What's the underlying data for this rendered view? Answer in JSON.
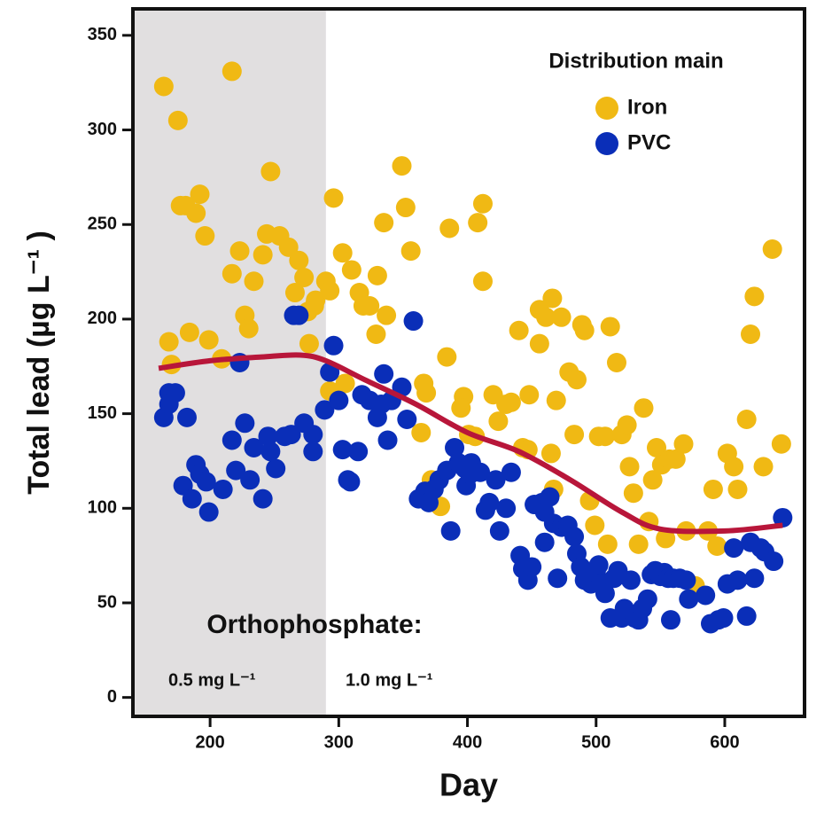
{
  "chart_data": {
    "type": "scatter",
    "x_label": "Day",
    "y_label": "Total lead (µg L⁻¹ )",
    "xlim": [
      140,
      662
    ],
    "ylim": [
      -10,
      364
    ],
    "xticks": [
      200,
      300,
      400,
      500,
      600
    ],
    "yticks": [
      0,
      50,
      100,
      150,
      200,
      250,
      300,
      350
    ],
    "shaded_region": [
      140,
      290
    ],
    "shade_color": "#e1dfe0",
    "legend_title": "Distribution main",
    "legend": "upper right",
    "annotations": [
      "Orthophosphate:",
      "0.5 mg L⁻¹",
      "1.0 mg L⁻¹"
    ],
    "series": [
      {
        "name": "Iron",
        "color": "#f0b914",
        "x": [
          164,
          175,
          217,
          168,
          170,
          177,
          181,
          192,
          189,
          196,
          184,
          199,
          209,
          217,
          223,
          234,
          227,
          230,
          241,
          247,
          244,
          254,
          261,
          269,
          273,
          266,
          276,
          282,
          277,
          290,
          293,
          281,
          296,
          303,
          310,
          316,
          319,
          324,
          330,
          329,
          335,
          337,
          349,
          352,
          356,
          366,
          368,
          364,
          305,
          293,
          372,
          379,
          384,
          386,
          397,
          395,
          401,
          406,
          408,
          412,
          412,
          420,
          424,
          430,
          434,
          440,
          448,
          456,
          456,
          461,
          466,
          473,
          469,
          443,
          447,
          465,
          467,
          479,
          485,
          483,
          489,
          491,
          495,
          499,
          502,
          507,
          509,
          511,
          516,
          520,
          524,
          526,
          529,
          533,
          537,
          541,
          544,
          547,
          551,
          554,
          557,
          562,
          568,
          570,
          577,
          587,
          591,
          594,
          602,
          607,
          610,
          617,
          620,
          623,
          630,
          637,
          644
        ],
        "values": [
          323,
          305,
          331,
          188,
          176,
          260,
          260,
          266,
          256,
          244,
          193,
          189,
          179,
          224,
          236,
          220,
          202,
          195,
          234,
          278,
          245,
          244,
          238,
          231,
          222,
          214,
          204,
          210,
          187,
          220,
          215,
          207,
          264,
          235,
          226,
          214,
          207,
          207,
          223,
          192,
          251,
          202,
          281,
          259,
          236,
          166,
          161,
          140,
          166,
          162,
          115,
          101,
          180,
          248,
          159,
          153,
          139,
          138,
          251,
          261,
          220,
          160,
          146,
          155,
          156,
          194,
          160,
          205,
          187,
          201,
          211,
          201,
          157,
          132,
          131,
          129,
          110,
          172,
          168,
          139,
          197,
          194,
          104,
          91,
          138,
          138,
          81,
          196,
          177,
          139,
          144,
          122,
          108,
          81,
          153,
          93,
          115,
          132,
          123,
          84,
          126,
          126,
          134,
          88,
          59,
          88,
          110,
          80,
          129,
          122,
          110,
          147,
          192,
          212,
          122,
          237,
          134
        ]
      },
      {
        "name": "PVC",
        "color": "#0a2eb8",
        "x": [
          164,
          168,
          173,
          168,
          182,
          179,
          186,
          189,
          192,
          197,
          199,
          210,
          217,
          220,
          223,
          227,
          231,
          234,
          241,
          245,
          247,
          251,
          258,
          263,
          265,
          269,
          273,
          280,
          280,
          289,
          293,
          296,
          300,
          303,
          307,
          309,
          315,
          318,
          324,
          330,
          333,
          338,
          335,
          341,
          349,
          353,
          358,
          362,
          367,
          370,
          374,
          378,
          384,
          387,
          390,
          393,
          398,
          399,
          402,
          403,
          410,
          414,
          417,
          422,
          425,
          430,
          434,
          441,
          443,
          447,
          450,
          452,
          458,
          460,
          460,
          464,
          467,
          470,
          473,
          478,
          483,
          485,
          488,
          491,
          496,
          500,
          502,
          505,
          507,
          511,
          514,
          517,
          520,
          522,
          527,
          530,
          533,
          536,
          540,
          543,
          546,
          550,
          553,
          556,
          558,
          560,
          565,
          570,
          572,
          585,
          589,
          595,
          599,
          602,
          607,
          610,
          617,
          620,
          623,
          628,
          631,
          638,
          645
        ],
        "values": [
          148,
          161,
          161,
          155,
          148,
          112,
          105,
          123,
          118,
          114,
          98,
          110,
          136,
          120,
          177,
          145,
          115,
          132,
          105,
          138,
          130,
          121,
          138,
          139,
          202,
          202,
          145,
          139,
          130,
          152,
          172,
          186,
          157,
          131,
          115,
          114,
          130,
          160,
          157,
          148,
          155,
          136,
          171,
          157,
          164,
          147,
          199,
          105,
          109,
          103,
          110,
          115,
          120,
          88,
          132,
          124,
          121,
          112,
          118,
          124,
          119,
          99,
          103,
          115,
          88,
          100,
          119,
          75,
          68,
          62,
          69,
          102,
          103,
          98,
          82,
          106,
          92,
          63,
          90,
          91,
          85,
          76,
          69,
          62,
          60,
          66,
          70,
          60,
          55,
          42,
          63,
          67,
          42,
          47,
          62,
          42,
          41,
          47,
          52,
          65,
          67,
          64,
          66,
          63,
          41,
          63,
          63,
          62,
          52,
          54,
          39,
          41,
          42,
          60,
          79,
          62,
          43,
          82,
          63,
          79,
          77,
          72,
          95
        ]
      }
    ],
    "trend": {
      "color": "#b8163a",
      "x": [
        160,
        200,
        240,
        270,
        290,
        320,
        360,
        400,
        440,
        480,
        520,
        550,
        600,
        645
      ],
      "values": [
        174,
        178,
        180,
        181,
        178,
        168,
        155,
        140,
        130,
        115,
        98,
        89,
        88,
        91
      ]
    }
  }
}
